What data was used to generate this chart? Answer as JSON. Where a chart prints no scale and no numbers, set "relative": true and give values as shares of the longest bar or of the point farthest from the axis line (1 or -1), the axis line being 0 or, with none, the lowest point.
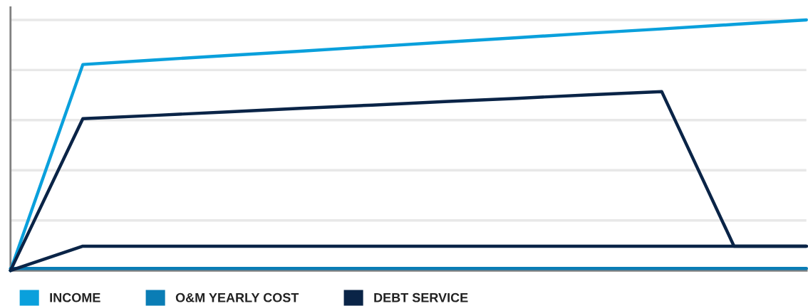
{
  "chart_data": {
    "type": "line",
    "relative": true,
    "grid": "y",
    "legend": "bottom left",
    "marker": "none",
    "line_style": "solid",
    "categories": [
      null,
      null,
      null,
      null,
      null,
      null,
      null,
      null,
      null,
      null,
      null,
      null
    ],
    "series": [
      {
        "name": "INCOME",
        "color": "#0aa0dc",
        "values": [
          0,
          0.822,
          0.84,
          0.858,
          0.875,
          0.893,
          0.911,
          0.929,
          0.947,
          0.964,
          0.982,
          1.0
        ]
      },
      {
        "name": "O&M YEARLY COST",
        "color": "#0a7db5",
        "values": [
          0.008,
          0.008,
          0.008,
          0.008,
          0.008,
          0.008,
          0.008,
          0.008,
          0.008,
          0.008,
          0.008,
          0.008
        ]
      },
      {
        "name": "DEBT SERVICE",
        "color": "#0a2447",
        "values": [
          0,
          0.606,
          0.619,
          0.633,
          0.647,
          0.66,
          0.674,
          0.687,
          0.701,
          0.714,
          0.097,
          0.097
        ]
      },
      {
        "color": "#0a2447",
        "values": [
          0,
          0.097,
          0.097,
          0.097,
          0.097,
          0.097,
          0.097,
          0.097,
          0.097,
          0.097,
          0.097,
          0.097
        ]
      }
    ]
  }
}
